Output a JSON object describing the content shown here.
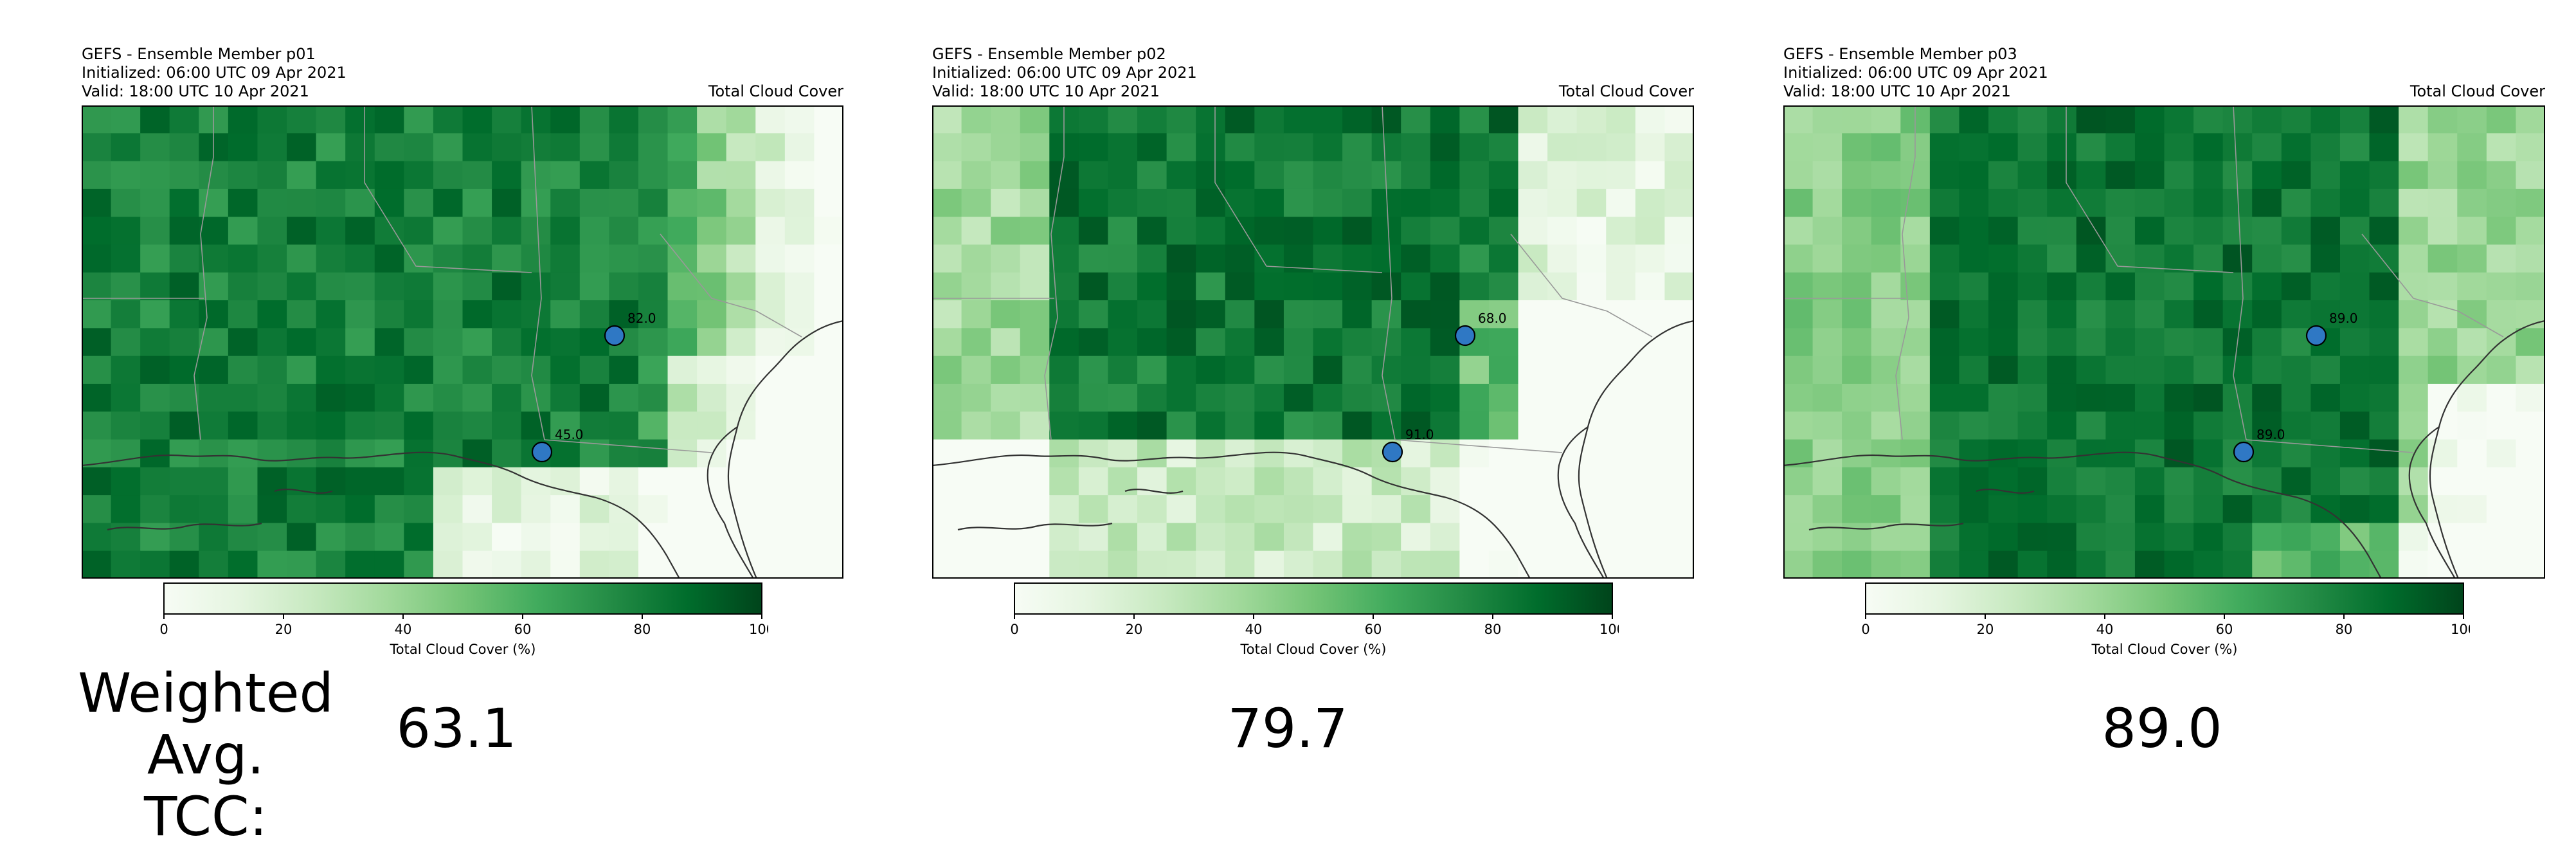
{
  "panels": [
    {
      "title_lines": [
        "GEFS - Ensemble Member p01",
        "Initialized: 06:00 UTC 09 Apr 2021",
        "Valid: 18:00 UTC 10 Apr 2021"
      ],
      "right_title": "Total Cloud Cover",
      "weighted_avg": "63.1"
    },
    {
      "title_lines": [
        "GEFS - Ensemble Member p02",
        "Initialized: 06:00 UTC 09 Apr 2021",
        "Valid: 18:00 UTC 10 Apr 2021"
      ],
      "right_title": "Total Cloud Cover",
      "weighted_avg": "79.7"
    },
    {
      "title_lines": [
        "GEFS - Ensemble Member p03",
        "Initialized: 06:00 UTC 09 Apr 2021",
        "Valid: 18:00 UTC 10 Apr 2021"
      ],
      "right_title": "Total Cloud Cover",
      "weighted_avg": "89.0"
    }
  ],
  "summary": {
    "label": "Weighted Avg.\nTCC:"
  },
  "colors": {
    "cmap_low": "#f7fcf5",
    "cmap_high": "#00441b",
    "station_fill": "#2f78c4",
    "coast": "#333333"
  },
  "chart_data": [
    {
      "type": "heatmap",
      "title": "GEFS - Ensemble Member p01",
      "colorbar": {
        "label": "Total Cloud Cover (%)",
        "ticks": [
          0,
          20,
          40,
          60,
          80,
          100
        ],
        "range": [
          0,
          100
        ],
        "cmap": "Greens"
      },
      "stations": [
        {
          "label": "82.0",
          "value": 82.0
        },
        {
          "label": "45.0",
          "value": 45.0
        }
      ],
      "weighted_avg": 63.1
    },
    {
      "type": "heatmap",
      "title": "GEFS - Ensemble Member p02",
      "colorbar": {
        "label": "Total Cloud Cover (%)",
        "ticks": [
          0,
          20,
          40,
          60,
          80,
          100
        ],
        "range": [
          0,
          100
        ],
        "cmap": "Greens"
      },
      "stations": [
        {
          "label": "68.0",
          "value": 68.0
        },
        {
          "label": "91.0",
          "value": 91.0
        }
      ],
      "weighted_avg": 79.7
    },
    {
      "type": "heatmap",
      "title": "GEFS - Ensemble Member p03",
      "colorbar": {
        "label": "Total Cloud Cover (%)",
        "ticks": [
          0,
          20,
          40,
          60,
          80,
          100
        ],
        "range": [
          0,
          100
        ],
        "cmap": "Greens"
      },
      "stations": [
        {
          "label": "89.0",
          "value": 89.0
        },
        {
          "label": "89.0",
          "value": 89.0
        }
      ],
      "weighted_avg": 89.0
    }
  ]
}
